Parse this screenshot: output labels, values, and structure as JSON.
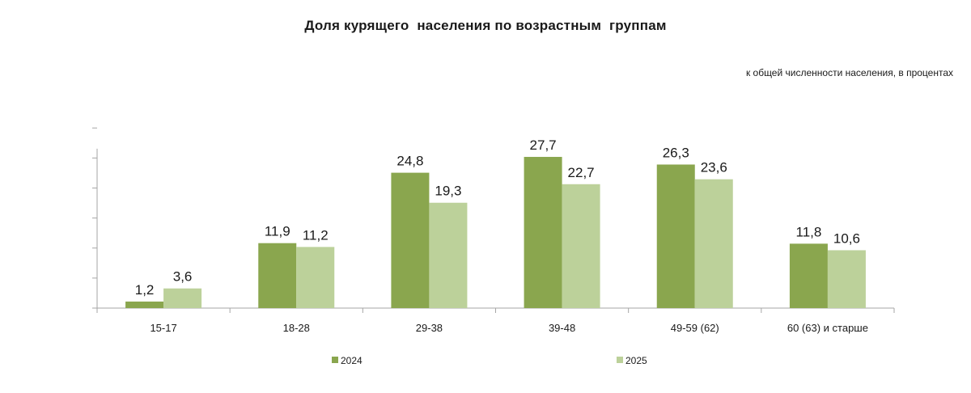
{
  "chart_data": {
    "type": "bar",
    "title": "Доля курящего  населения по возрастным  группам",
    "subtitle": "к общей численности населения, в процентах",
    "categories": [
      "15-17",
      "18-28",
      "29-38",
      "39-48",
      "49-59 (62)",
      "60 (63) и старше"
    ],
    "series": [
      {
        "name": "2024",
        "color": "#8aa64e",
        "values": [
          1.2,
          11.9,
          24.8,
          27.7,
          26.3,
          11.8
        ],
        "labels": [
          "1,2",
          "11,9",
          "24,8",
          "27,7",
          "26,3",
          "11,8"
        ]
      },
      {
        "name": "2025",
        "color": "#bcd19a",
        "values": [
          3.6,
          11.2,
          19.3,
          22.7,
          23.6,
          10.6
        ],
        "labels": [
          "3,6",
          "11,2",
          "19,3",
          "22,7",
          "23,6",
          "10,6"
        ]
      }
    ],
    "ylim": [
      0,
      30
    ],
    "grid": false,
    "legend_position": "bottom"
  }
}
